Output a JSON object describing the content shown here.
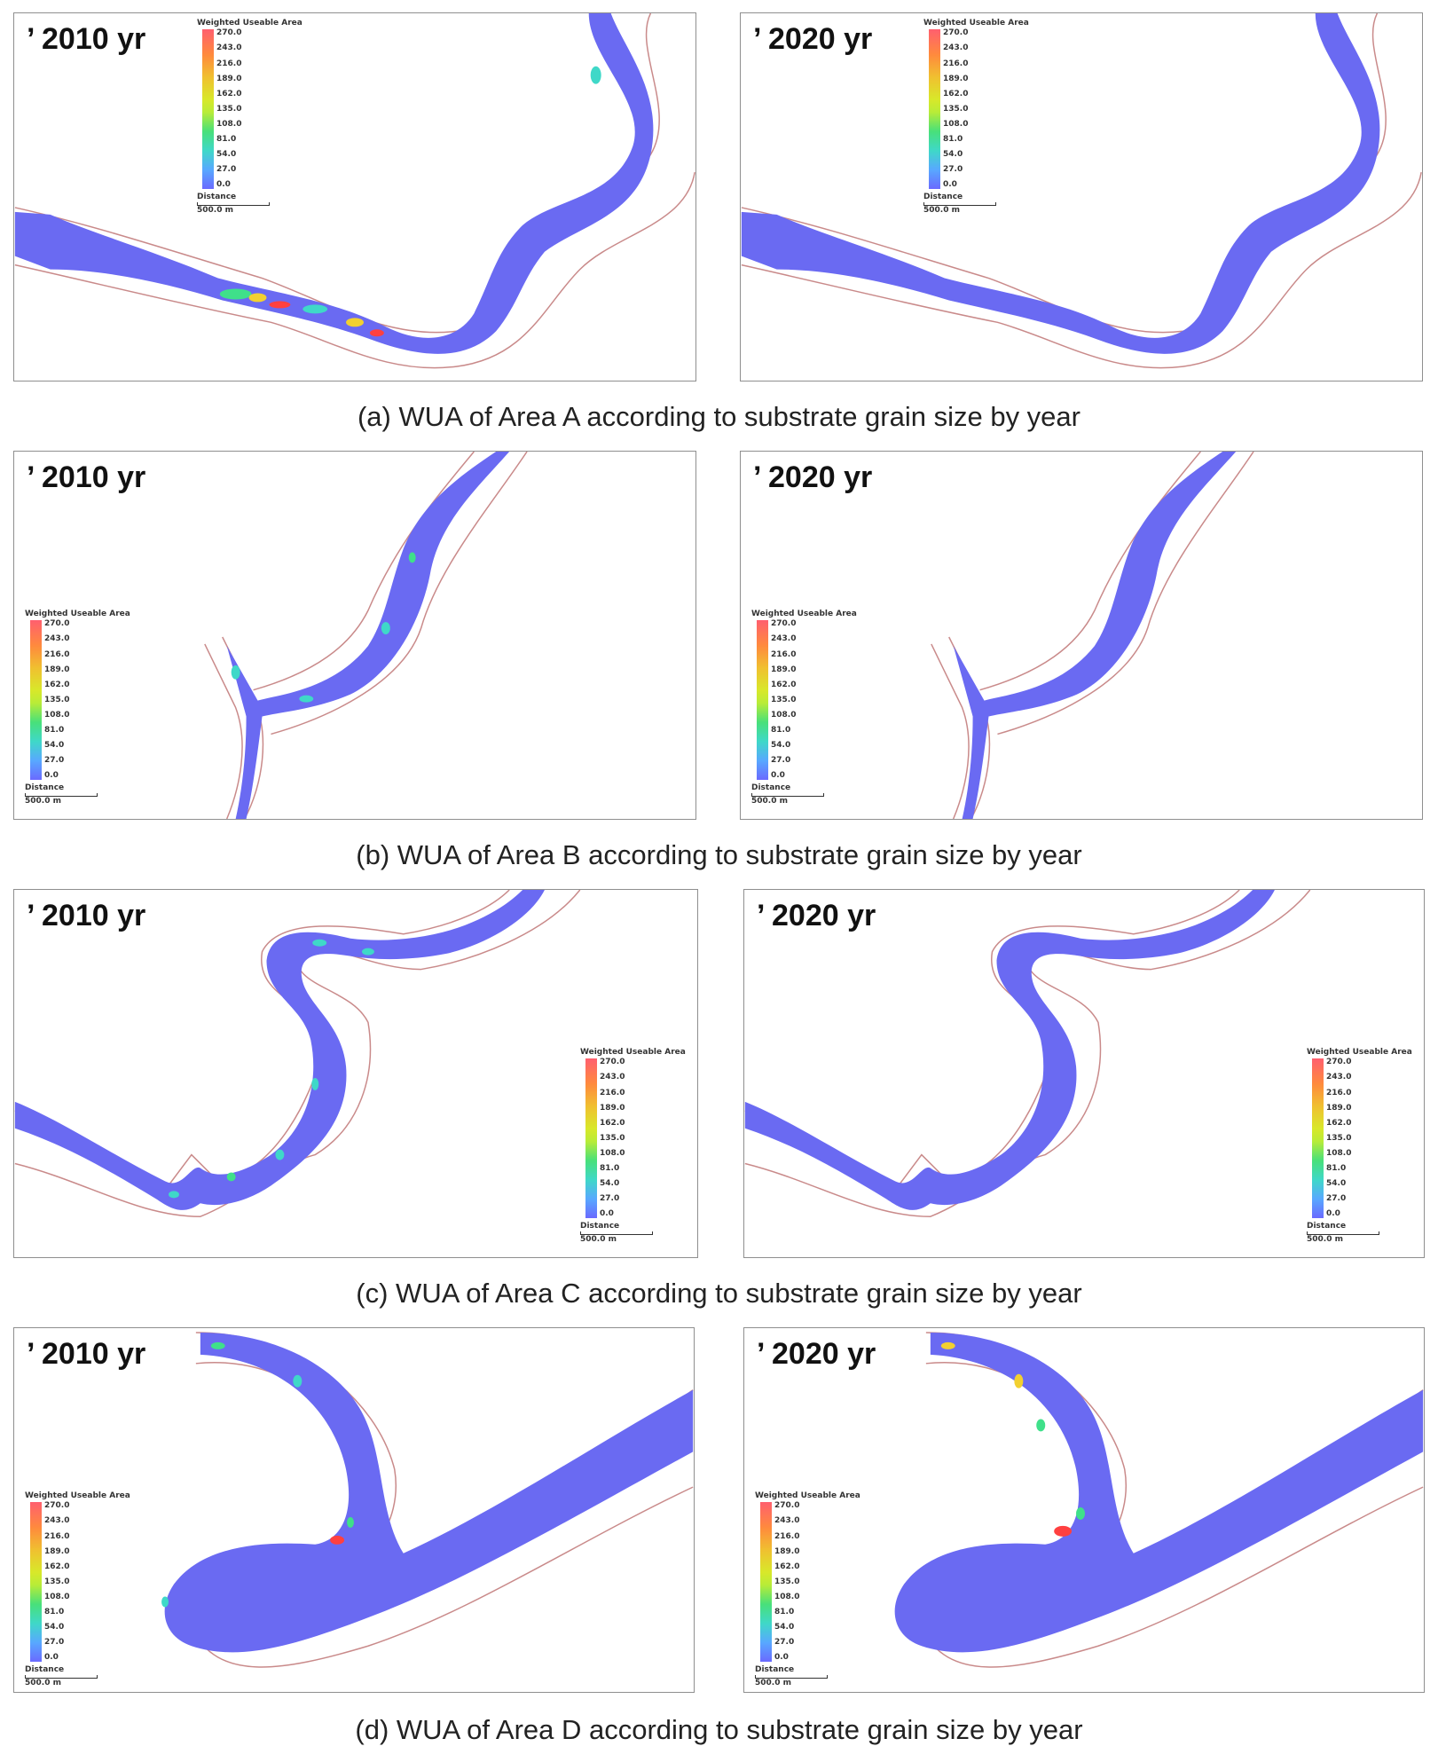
{
  "panels": [
    {
      "year_label": "’ 2010 yr"
    },
    {
      "year_label": "’ 2020 yr"
    },
    {
      "year_label": "’ 2010 yr"
    },
    {
      "year_label": "’ 2020 yr"
    },
    {
      "year_label": "’ 2010 yr"
    },
    {
      "year_label": "’ 2020 yr"
    },
    {
      "year_label": "’ 2010 yr"
    },
    {
      "year_label": "’ 2020 yr"
    }
  ],
  "legend": {
    "title": "Weighted Useable Area",
    "ticks": [
      "270.0",
      "243.0",
      "216.0",
      "189.0",
      "162.0",
      "135.0",
      "108.0",
      "81.0",
      "54.0",
      "27.0",
      "0.0"
    ],
    "distance_label": "Distance",
    "scale_label": "500.0 m"
  },
  "captions": {
    "a": "(a) WUA of Area A according to substrate grain size by year",
    "b": "(b) WUA of Area B according to substrate grain size by year",
    "c": "(c) WUA of Area C according to substrate grain size by year",
    "d": "(d) WUA of Area D according to substrate grain size by year"
  },
  "colors": {
    "water_low_wua": "#6a6af2",
    "channel_boundary": "#c98a8a",
    "high_wua_1": "#ff4040",
    "high_wua_2": "#f2d030",
    "high_wua_3": "#3fe08a"
  }
}
